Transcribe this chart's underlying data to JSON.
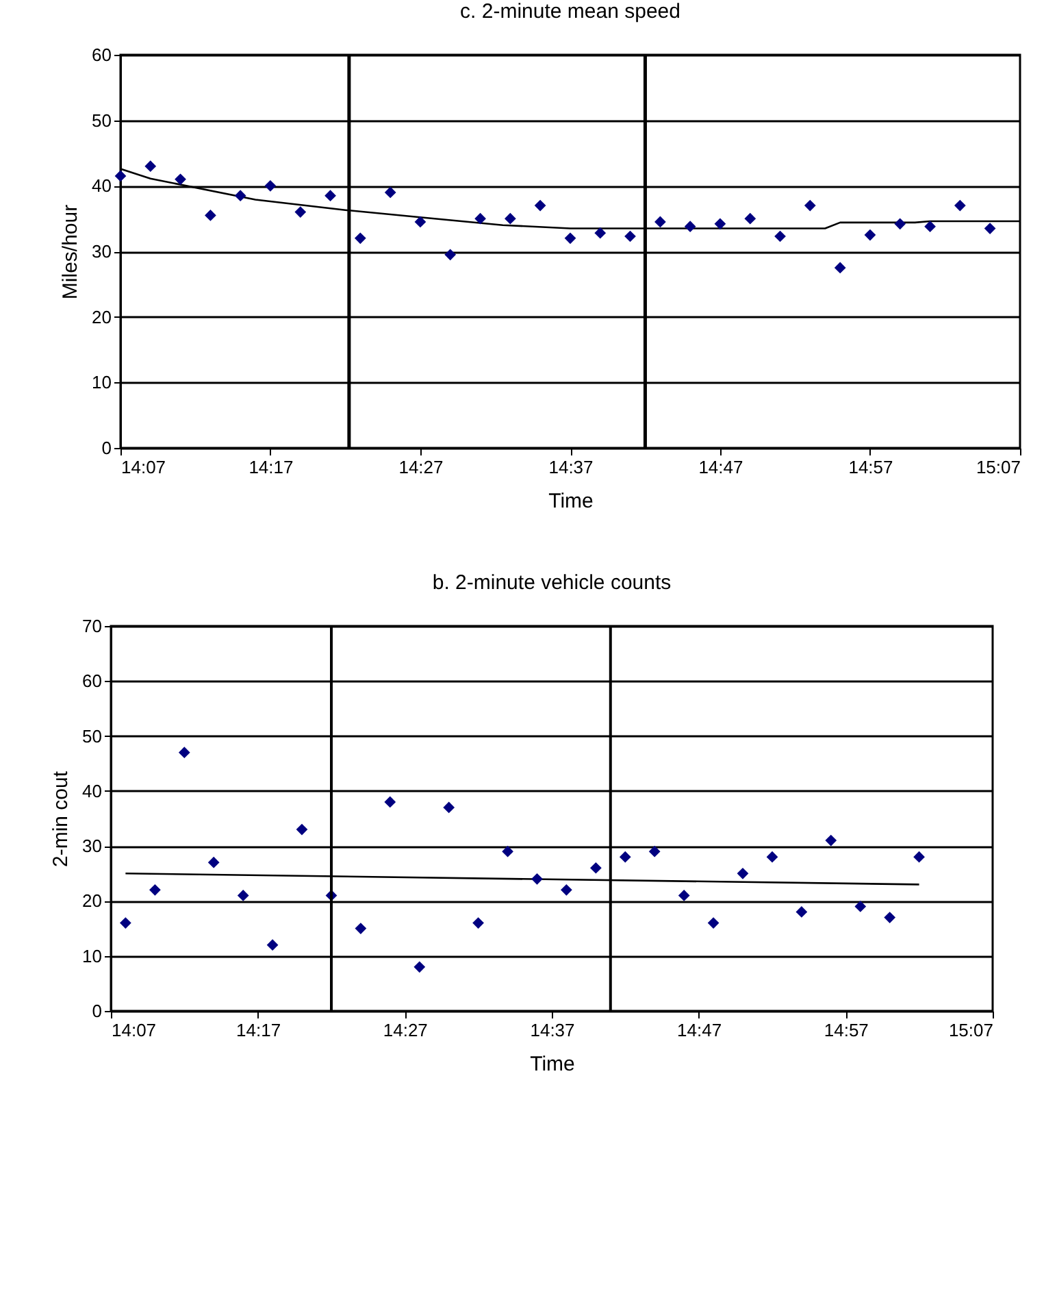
{
  "chart_data": [
    {
      "type": "scatter",
      "title": "c. 2-minute mean speed",
      "xlabel": "Time",
      "ylabel": "Miles/hour",
      "marker": "diamond",
      "grid": "y",
      "x": [
        14.1167,
        14.15,
        14.1833,
        14.2167,
        14.25,
        14.2833,
        14.3167,
        14.35,
        14.3833,
        14.4167,
        14.45,
        14.4833,
        14.5167,
        14.55,
        14.5833,
        14.6167,
        14.65,
        14.6833,
        14.7167,
        14.75,
        14.7833,
        14.8167,
        14.85,
        14.8833,
        14.9167,
        14.95,
        14.9833,
        15.0167,
        15.05,
        15.0833
      ],
      "series": [
        {
          "color": "#000080",
          "values": [
            41.5,
            43,
            41,
            35.5,
            38.5,
            40,
            36,
            38.5,
            32,
            39,
            34.5,
            29.5,
            35,
            35,
            37,
            32,
            32.8,
            32.3,
            34.5,
            33.8,
            34.2,
            35,
            32.3,
            37,
            27.5,
            32.5,
            34.2,
            33.8,
            37,
            33.5
          ]
        },
        {
          "type": "line",
          "marker": "none",
          "color": "#000000",
          "x": [
            14.1167,
            14.15,
            14.2667,
            14.3667,
            14.45,
            14.5417,
            14.6167,
            14.9,
            14.9167,
            15.0,
            15.0167,
            15.1167
          ],
          "values": [
            42.6,
            41.1,
            37.9,
            36.3,
            35.2,
            34,
            33.5,
            33.5,
            34.4,
            34.4,
            34.6,
            34.6
          ]
        }
      ],
      "xlim": [
        14.1167,
        15.1167
      ],
      "xticks": [
        {
          "value": 14.1167,
          "label": "14:07"
        },
        {
          "value": 14.2833,
          "label": "14:17"
        },
        {
          "value": 14.45,
          "label": "14:27"
        },
        {
          "value": 14.6167,
          "label": "14:37"
        },
        {
          "value": 14.7833,
          "label": "14:47"
        },
        {
          "value": 14.95,
          "label": "14:57"
        },
        {
          "value": 15.1167,
          "label": "15:07"
        }
      ],
      "ylim": [
        0,
        60
      ],
      "yticks": [
        0,
        10,
        20,
        30,
        40,
        50,
        60
      ],
      "ref_lines": [
        {
          "axis": "x",
          "value": 14.3708,
          "color": "#000000"
        },
        {
          "axis": "x",
          "value": 14.7,
          "color": "#000000"
        }
      ]
    },
    {
      "type": "scatter",
      "title": "b. 2-minute vehicle counts",
      "xlabel": "Time",
      "ylabel": "2-min cout",
      "marker": "diamond",
      "grid": "y",
      "x": [
        14.1333,
        14.1667,
        14.2,
        14.2333,
        14.2667,
        14.3,
        14.3333,
        14.3667,
        14.4,
        14.4333,
        14.4667,
        14.5,
        14.5333,
        14.5667,
        14.6,
        14.6333,
        14.6667,
        14.7,
        14.7333,
        14.7667,
        14.8,
        14.8333,
        14.8667,
        14.9,
        14.9333,
        14.9667,
        15.0,
        15.0333
      ],
      "series": [
        {
          "color": "#000080",
          "values": [
            16,
            22,
            47,
            27,
            21,
            12,
            33,
            21,
            15,
            38,
            8,
            37,
            16,
            29,
            24,
            22,
            26,
            28,
            29,
            21,
            16,
            25,
            28,
            18,
            31,
            19,
            17,
            28
          ]
        },
        {
          "type": "line",
          "marker": "none",
          "color": "#000000",
          "x": [
            14.1333,
            15.0333
          ],
          "values": [
            25,
            23
          ]
        }
      ],
      "xlim": [
        14.1167,
        15.1167
      ],
      "xticks": [
        {
          "value": 14.1167,
          "label": "14:07"
        },
        {
          "value": 14.2833,
          "label": "14:17"
        },
        {
          "value": 14.45,
          "label": "14:27"
        },
        {
          "value": 14.6167,
          "label": "14:37"
        },
        {
          "value": 14.7833,
          "label": "14:47"
        },
        {
          "value": 14.95,
          "label": "14:57"
        },
        {
          "value": 15.1167,
          "label": "15:07"
        }
      ],
      "ylim": [
        0,
        70
      ],
      "yticks": [
        0,
        10,
        20,
        30,
        40,
        50,
        60,
        70
      ],
      "ref_lines": [
        {
          "axis": "x",
          "value": 14.3667,
          "color": "#000000"
        },
        {
          "axis": "x",
          "value": 14.6833,
          "color": "#000000"
        }
      ]
    }
  ]
}
